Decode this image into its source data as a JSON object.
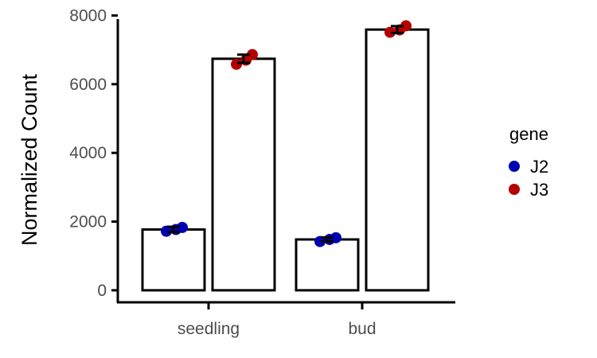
{
  "chart_data": {
    "type": "bar",
    "title": "",
    "xlabel": "",
    "ylabel": "Normalized Count",
    "ylim": [
      -350,
      8080
    ],
    "yticks": [
      0,
      2000,
      4000,
      6000,
      8000
    ],
    "yticks_labels": [
      "0",
      "2000",
      "4000",
      "6000",
      "8000"
    ],
    "categories": [
      "seedling",
      "bud"
    ],
    "grid": false,
    "legend_position": "right",
    "legend_title": "gene",
    "series": [
      {
        "name": "J2",
        "color": "#0000b3",
        "values": [
          1770,
          1480
        ],
        "error": [
          80,
          60
        ],
        "points": [
          [
            1720,
            1770,
            1830
          ],
          [
            1420,
            1480,
            1530
          ]
        ]
      },
      {
        "name": "J3",
        "color": "#b30000",
        "values": [
          6740,
          7590
        ],
        "error": [
          120,
          100
        ],
        "points": [
          [
            6580,
            6700,
            6860
          ],
          [
            7510,
            7580,
            7700
          ]
        ]
      }
    ]
  }
}
